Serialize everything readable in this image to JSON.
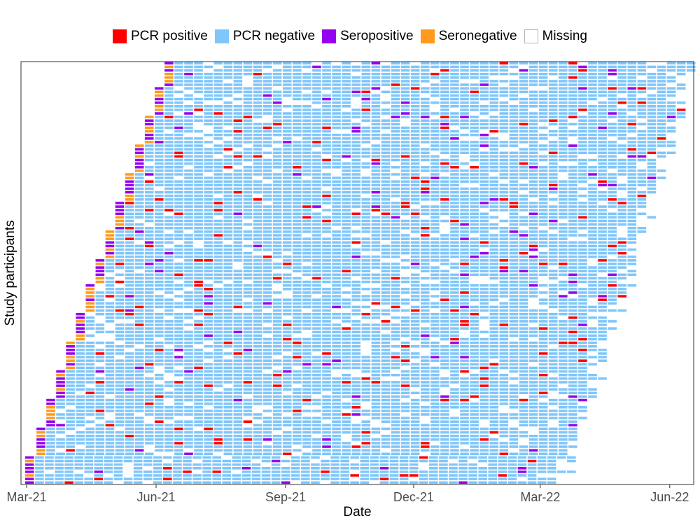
{
  "chart_data": {
    "type": "heatmap",
    "title": "",
    "xlabel": "Date",
    "ylabel": "Study participants",
    "x_ticks": [
      "Mar-21",
      "Jun-21",
      "Sep-21",
      "Dec-21",
      "Mar-22",
      "Jun-22"
    ],
    "x_tick_dates": [
      "2021-03-01",
      "2021-06-01",
      "2021-09-01",
      "2021-12-01",
      "2022-03-01",
      "2022-06-01"
    ],
    "x_range": [
      "2021-02-25",
      "2022-06-18"
    ],
    "grid": false,
    "legend_position": "top",
    "categories": [
      {
        "name": "PCR positive",
        "color": "#ff0000"
      },
      {
        "name": "PCR negative",
        "color": "#7fc6fb"
      },
      {
        "name": "Seropositive",
        "color": "#9400f0"
      },
      {
        "name": "Seronegative",
        "color": "#ff9a1c"
      },
      {
        "name": "Missing",
        "color": "#ffffff"
      }
    ],
    "enrollment_start_dates": [
      "2021-02-28",
      "2021-03-08",
      "2021-03-15",
      "2021-03-22",
      "2021-03-29",
      "2021-04-05",
      "2021-04-12",
      "2021-04-19",
      "2021-04-26",
      "2021-05-03",
      "2021-05-10",
      "2021-05-17",
      "2021-05-24",
      "2021-05-31",
      "2021-06-07"
    ],
    "enrollment_end_dates": [
      "2022-03-07",
      "2022-03-14",
      "2022-03-21",
      "2022-03-28",
      "2022-04-04",
      "2022-04-11",
      "2022-04-18",
      "2022-04-25",
      "2022-05-02",
      "2022-05-09",
      "2022-05-16",
      "2022-05-23",
      "2022-05-30",
      "2022-06-06",
      "2022-06-13"
    ],
    "visit_interval_days": 7
  }
}
